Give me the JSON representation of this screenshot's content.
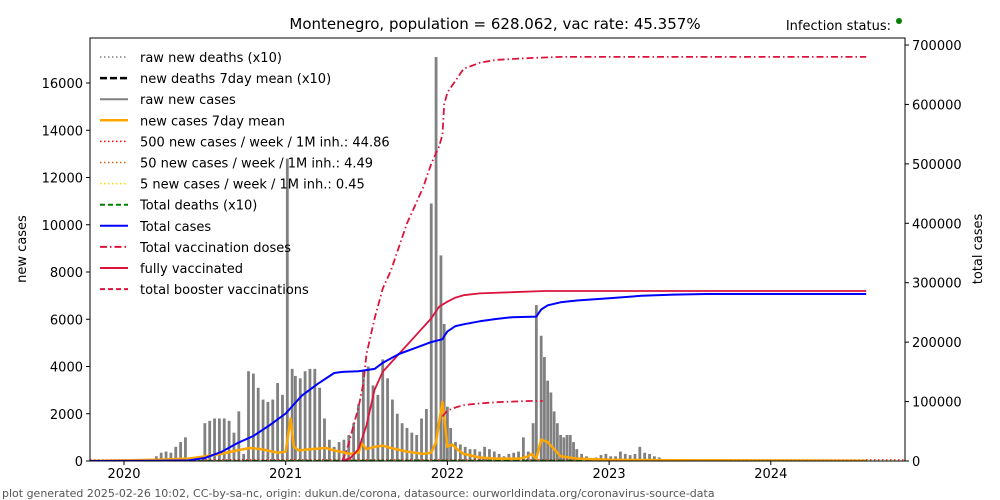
{
  "chart_data": {
    "type": "line",
    "title": "Montenegro, population = 628.062, vac rate: 45.357%",
    "status_label": "Infection status:",
    "status_color": "#008000",
    "ylabel_left": "new cases",
    "ylabel_right": "total cases",
    "footer": "plot generated 2025-02-26 10:02, CC-by-sa-nc, origin: dukun.de/corona, datasource: ourworldindata.org/coronavirus-source-data",
    "xlim": [
      2019.79,
      2024.84
    ],
    "ylim_left": [
      0,
      17800
    ],
    "ylim_right": [
      0,
      712000
    ],
    "x_ticks": [
      {
        "value": 2020,
        "label": "2020"
      },
      {
        "value": 2021,
        "label": "2021"
      },
      {
        "value": 2022,
        "label": "2022"
      },
      {
        "value": 2023,
        "label": "2023"
      },
      {
        "value": 2024,
        "label": "2024"
      }
    ],
    "y_ticks_left": [
      {
        "value": 0,
        "label": "0"
      },
      {
        "value": 2000,
        "label": "2000"
      },
      {
        "value": 4000,
        "label": "4000"
      },
      {
        "value": 6000,
        "label": "6000"
      },
      {
        "value": 8000,
        "label": "8000"
      },
      {
        "value": 10000,
        "label": "10000"
      },
      {
        "value": 12000,
        "label": "12000"
      },
      {
        "value": 14000,
        "label": "14000"
      },
      {
        "value": 16000,
        "label": "16000"
      }
    ],
    "y_ticks_right": [
      {
        "value": 0,
        "label": "0"
      },
      {
        "value": 100000,
        "label": "100000"
      },
      {
        "value": 200000,
        "label": "200000"
      },
      {
        "value": 300000,
        "label": "300000"
      },
      {
        "value": 400000,
        "label": "400000"
      },
      {
        "value": 500000,
        "label": "500000"
      },
      {
        "value": 600000,
        "label": "600000"
      },
      {
        "value": 700000,
        "label": "700000"
      }
    ],
    "legend": [
      {
        "label": "raw new deaths (x10)",
        "color": "#808080",
        "style": "dotted"
      },
      {
        "label": "new deaths 7day mean (x10)",
        "color": "#000000",
        "style": "dashed-thick"
      },
      {
        "label": "raw new cases",
        "color": "#808080",
        "style": "solid"
      },
      {
        "label": "new cases 7day mean",
        "color": "#FFA500",
        "style": "solid-thick"
      },
      {
        "label": "500 new cases / week / 1M inh.: 44.86",
        "color": "#FF0000",
        "style": "dotted"
      },
      {
        "label": "50 new cases / week / 1M inh.: 4.49",
        "color": "#D2691E",
        "style": "dotted"
      },
      {
        "label": "5 new cases / week / 1M inh.: 0.45",
        "color": "#FFD700",
        "style": "dotted"
      },
      {
        "label": "Total deaths (x10)",
        "color": "#008000",
        "style": "dashed"
      },
      {
        "label": "Total cases",
        "color": "#0000FF",
        "style": "solid"
      },
      {
        "label": "Total vaccination doses",
        "color": "#DC143C",
        "style": "dashdot"
      },
      {
        "label": "fully vaccinated",
        "color": "#DC143C",
        "style": "solid"
      },
      {
        "label": "total booster vaccinations",
        "color": "#DC143C",
        "style": "dashed"
      }
    ],
    "raw_new_cases_bars": {
      "x": [
        2020.2,
        2020.23,
        2020.26,
        2020.29,
        2020.32,
        2020.35,
        2020.38,
        2020.5,
        2020.53,
        2020.56,
        2020.59,
        2020.62,
        2020.65,
        2020.68,
        2020.71,
        2020.74,
        2020.77,
        2020.8,
        2020.83,
        2020.86,
        2020.89,
        2020.92,
        2020.95,
        2020.98,
        2021.01,
        2021.04,
        2021.06,
        2021.09,
        2021.12,
        2021.15,
        2021.18,
        2021.21,
        2021.24,
        2021.27,
        2021.3,
        2021.33,
        2021.36,
        2021.39,
        2021.42,
        2021.45,
        2021.48,
        2021.51,
        2021.54,
        2021.57,
        2021.6,
        2021.63,
        2021.66,
        2021.69,
        2021.72,
        2021.75,
        2021.78,
        2021.81,
        2021.84,
        2021.87,
        2021.9,
        2021.93,
        2021.96,
        2021.98,
        2022.0,
        2022.02,
        2022.05,
        2022.08,
        2022.11,
        2022.14,
        2022.17,
        2022.2,
        2022.23,
        2022.26,
        2022.29,
        2022.32,
        2022.35,
        2022.38,
        2022.41,
        2022.44,
        2022.47,
        2022.5,
        2022.53,
        2022.55,
        2022.58,
        2022.6,
        2022.62,
        2022.64,
        2022.66,
        2022.68,
        2022.7,
        2022.72,
        2022.74,
        2022.76,
        2022.78,
        2022.8,
        2022.83,
        2022.86,
        2022.89,
        2022.92,
        2022.95,
        2022.98,
        2023.01,
        2023.04,
        2023.07,
        2023.1,
        2023.13,
        2023.16,
        2023.19,
        2023.22,
        2023.25,
        2023.28,
        2023.31,
        2023.34,
        2023.37,
        2023.4,
        2023.43,
        2023.46,
        2023.49,
        2023.52
      ],
      "values": [
        200,
        350,
        400,
        350,
        600,
        800,
        1000,
        1600,
        1700,
        1800,
        1800,
        1800,
        1700,
        1200,
        2100,
        300,
        3800,
        3700,
        3100,
        2600,
        2500,
        2600,
        3300,
        2800,
        12800,
        3900,
        3600,
        3500,
        3800,
        3900,
        3900,
        3100,
        1800,
        900,
        600,
        800,
        900,
        1100,
        1600,
        2400,
        3800,
        4000,
        3200,
        2800,
        4300,
        3500,
        2600,
        2000,
        1600,
        1400,
        1200,
        1100,
        1800,
        2200,
        10900,
        17100,
        8700,
        5800,
        2300,
        1400,
        800,
        700,
        600,
        500,
        500,
        400,
        600,
        500,
        400,
        300,
        200,
        300,
        350,
        400,
        1000,
        400,
        1600,
        6600,
        5300,
        4400,
        3400,
        2900,
        2100,
        1600,
        1100,
        1000,
        1100,
        1100,
        800,
        500,
        300,
        200,
        100,
        150,
        250,
        300,
        200,
        200,
        400,
        300,
        250,
        300,
        600,
        350,
        300,
        200,
        150,
        50,
        50,
        20,
        10,
        5,
        2,
        0
      ],
      "color": "#808080"
    },
    "new_cases_7day_mean": {
      "x": [
        2019.79,
        2020.2,
        2020.4,
        2020.5,
        2020.6,
        2020.7,
        2020.78,
        2020.85,
        2020.95,
        2021.0,
        2021.03,
        2021.05,
        2021.08,
        2021.15,
        2021.25,
        2021.3,
        2021.4,
        2021.45,
        2021.47,
        2021.5,
        2021.55,
        2021.6,
        2021.65,
        2021.75,
        2021.85,
        2021.9,
        2021.93,
        2021.95,
        2021.97,
        2022.0,
        2022.03,
        2022.06,
        2022.1,
        2022.2,
        2022.3,
        2022.45,
        2022.5,
        2022.52,
        2022.55,
        2022.58,
        2022.62,
        2022.7,
        2022.8,
        2023.0,
        2023.4,
        2024.59
      ],
      "values": [
        0,
        50,
        100,
        200,
        300,
        450,
        550,
        500,
        350,
        400,
        1800,
        600,
        450,
        500,
        550,
        450,
        300,
        350,
        750,
        500,
        600,
        650,
        550,
        400,
        300,
        350,
        800,
        1700,
        2500,
        600,
        700,
        500,
        300,
        150,
        100,
        100,
        200,
        300,
        100,
        900,
        800,
        200,
        100,
        50,
        30,
        10
      ],
      "color": "#FFA500"
    },
    "total_cases": {
      "x": [
        2019.79,
        2020.2,
        2020.4,
        2020.5,
        2020.6,
        2020.7,
        2020.8,
        2020.9,
        2021.0,
        2021.05,
        2021.1,
        2021.2,
        2021.3,
        2021.35,
        2021.45,
        2021.55,
        2021.6,
        2021.7,
        2021.8,
        2021.9,
        2021.97,
        2021.98,
        2022.0,
        2022.05,
        2022.1,
        2022.2,
        2022.3,
        2022.4,
        2022.55,
        2022.58,
        2022.62,
        2022.7,
        2022.8,
        2023.0,
        2023.2,
        2023.4,
        2023.6,
        2024.0,
        2024.59
      ],
      "values": [
        0,
        300,
        1000,
        5000,
        15000,
        30000,
        42000,
        60000,
        80000,
        95000,
        110000,
        130000,
        148000,
        150000,
        151000,
        155000,
        165000,
        180000,
        190000,
        200000,
        205000,
        210000,
        218000,
        227000,
        230000,
        235000,
        239000,
        242000,
        243000,
        255000,
        262000,
        267000,
        270000,
        274000,
        278000,
        280000,
        281000,
        281000,
        281000
      ],
      "color": "#0000FF"
    },
    "total_deaths_x10": {
      "x": [
        2019.79,
        2020.3,
        2020.5,
        2020.7,
        2020.9,
        2021.0,
        2021.1,
        2021.2,
        2021.3,
        2021.4,
        2021.6,
        2021.8,
        2022.0,
        2022.2,
        2022.5,
        2022.7,
        2023.0,
        2023.5,
        2024.59
      ],
      "values": [
        0,
        0,
        20,
        80,
        200,
        300,
        360,
        400,
        460,
        500,
        540,
        580,
        620,
        650,
        670,
        690,
        700,
        710,
        710
      ],
      "color": "#008000"
    },
    "total_vaccination_doses": {
      "x": [
        2021.35,
        2021.38,
        2021.4,
        2021.42,
        2021.45,
        2021.48,
        2021.5,
        2021.55,
        2021.6,
        2021.65,
        2021.7,
        2021.75,
        2021.8,
        2021.85,
        2021.9,
        2021.95,
        2021.97,
        2021.98,
        2022.0,
        2022.05,
        2022.1,
        2022.2,
        2022.3,
        2022.5,
        2022.7,
        2023.0,
        2023.5,
        2024.0,
        2024.59
      ],
      "values": [
        0,
        20000,
        40000,
        60000,
        90000,
        130000,
        180000,
        240000,
        290000,
        320000,
        360000,
        400000,
        430000,
        460000,
        500000,
        530000,
        550000,
        600000,
        620000,
        640000,
        660000,
        670000,
        675000,
        678000,
        680000,
        680000,
        680000,
        680000,
        680000
      ],
      "color": "#DC143C"
    },
    "fully_vaccinated": {
      "x": [
        2021.35,
        2021.4,
        2021.45,
        2021.5,
        2021.55,
        2021.6,
        2021.65,
        2021.7,
        2021.8,
        2021.9,
        2021.95,
        2022.0,
        2022.05,
        2022.1,
        2022.2,
        2022.4,
        2022.6,
        2023.0,
        2024.0,
        2024.59
      ],
      "values": [
        0,
        5000,
        20000,
        60000,
        120000,
        150000,
        165000,
        180000,
        210000,
        240000,
        260000,
        268000,
        275000,
        279000,
        282000,
        284000,
        286000,
        286000,
        286000,
        286000
      ],
      "color": "#DC143C"
    },
    "total_booster_vaccinations": {
      "x": [
        2021.97,
        2022.0,
        2022.05,
        2022.1,
        2022.2,
        2022.3,
        2022.4,
        2022.5,
        2022.59
      ],
      "values": [
        75000,
        85000,
        90000,
        94000,
        97000,
        99000,
        100000,
        101000,
        101000
      ],
      "color": "#DC143C"
    },
    "threshold_500": 44.86,
    "threshold_50": 4.49,
    "threshold_5": 0.45
  }
}
